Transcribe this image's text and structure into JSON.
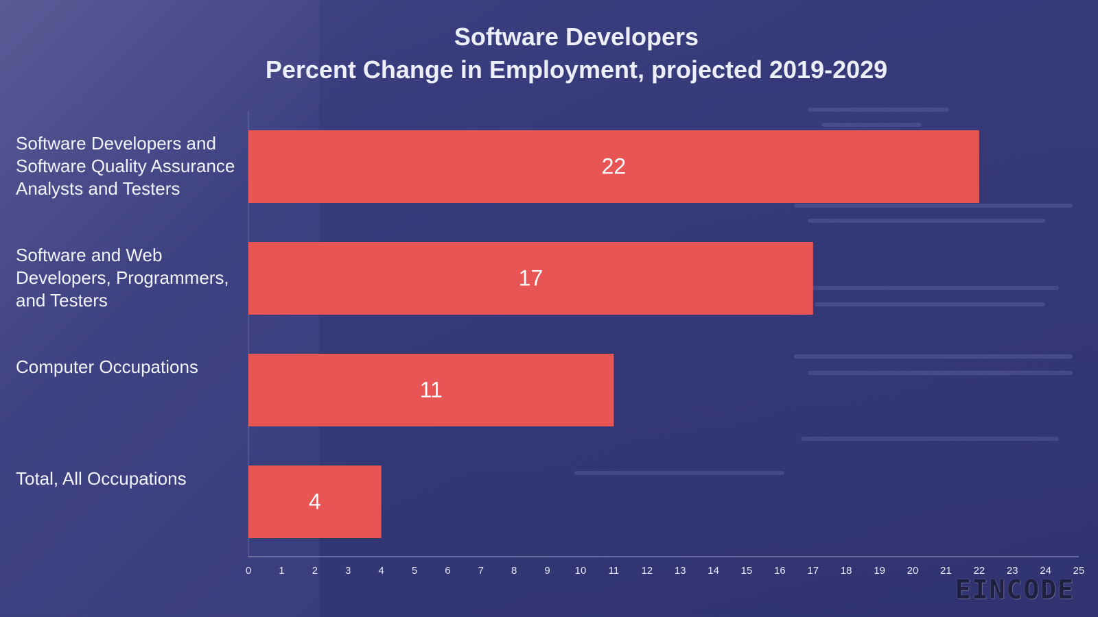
{
  "chart_data": {
    "type": "bar",
    "orientation": "horizontal",
    "title": "Software Developers",
    "subtitle": "Percent Change in Employment, projected 2019-2029",
    "categories": [
      "Software Developers and Software Quality Assurance Analysts and Testers",
      "Software and Web Developers, Programmers, and Testers",
      "Computer Occupations",
      "Total, All Occupations"
    ],
    "category_lines": [
      [
        "Software Developers and",
        "Software Quality Assurance",
        "Analysts and Testers"
      ],
      [
        "Software and Web",
        "Developers, Programmers,",
        "and Testers"
      ],
      [
        "Computer Occupations"
      ],
      [
        "Total, All Occupations"
      ]
    ],
    "values": [
      22,
      17,
      11,
      4
    ],
    "data_labels": [
      "22",
      "17",
      "11",
      "4"
    ],
    "xlim": [
      0,
      25
    ],
    "x_ticks": [
      "0",
      "1",
      "2",
      "3",
      "4",
      "5",
      "6",
      "7",
      "8",
      "9",
      "10",
      "11",
      "12",
      "13",
      "14",
      "15",
      "16",
      "17",
      "18",
      "19",
      "20",
      "21",
      "22",
      "23",
      "24",
      "25"
    ],
    "xlabel": "",
    "ylabel": "",
    "grid": false,
    "legend": "none",
    "bar_color": "#e85555"
  },
  "brand": {
    "logo_text": "EINCODE"
  }
}
